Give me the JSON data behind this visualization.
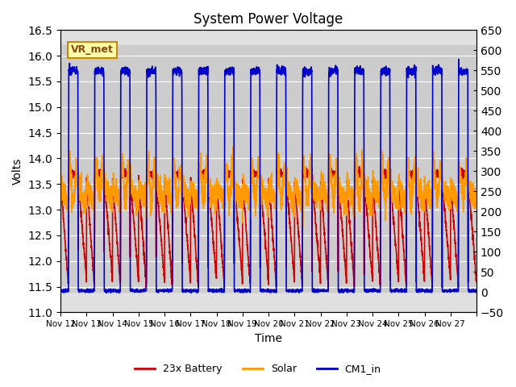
{
  "title": "System Power Voltage",
  "xlabel": "Time",
  "ylabel_left": "Volts",
  "ylim_left": [
    11.0,
    16.5
  ],
  "ylim_right": [
    -50,
    650
  ],
  "yticks_left": [
    11.0,
    11.5,
    12.0,
    12.5,
    13.0,
    13.5,
    14.0,
    14.5,
    15.0,
    15.5,
    16.0,
    16.5
  ],
  "yticks_right": [
    -50,
    0,
    50,
    100,
    150,
    200,
    250,
    300,
    350,
    400,
    450,
    500,
    550,
    600,
    650
  ],
  "x_labels": [
    "Nov 12",
    "Nov 13",
    "Nov 14",
    "Nov 15",
    "Nov 16",
    "Nov 17",
    "Nov 18",
    "Nov 19",
    "Nov 20",
    "Nov 21",
    "Nov 22",
    "Nov 23",
    "Nov 24",
    "Nov 25",
    "Nov 26",
    "Nov 27",
    ""
  ],
  "vr_met_label": "VR_met",
  "battery_label": "23x Battery",
  "battery_color": "#cc0000",
  "solar_label": "Solar",
  "solar_color": "#ff9900",
  "cm1_label": "CM1_in",
  "cm1_color": "#0000cc",
  "line_lw": 1.2,
  "background_color": "#ffffff",
  "plot_bg_color": "#e0e0e0",
  "grid_color": "#ffffff",
  "shaded_color": "#cccccc",
  "legend_fontsize": 9,
  "title_fontsize": 12
}
